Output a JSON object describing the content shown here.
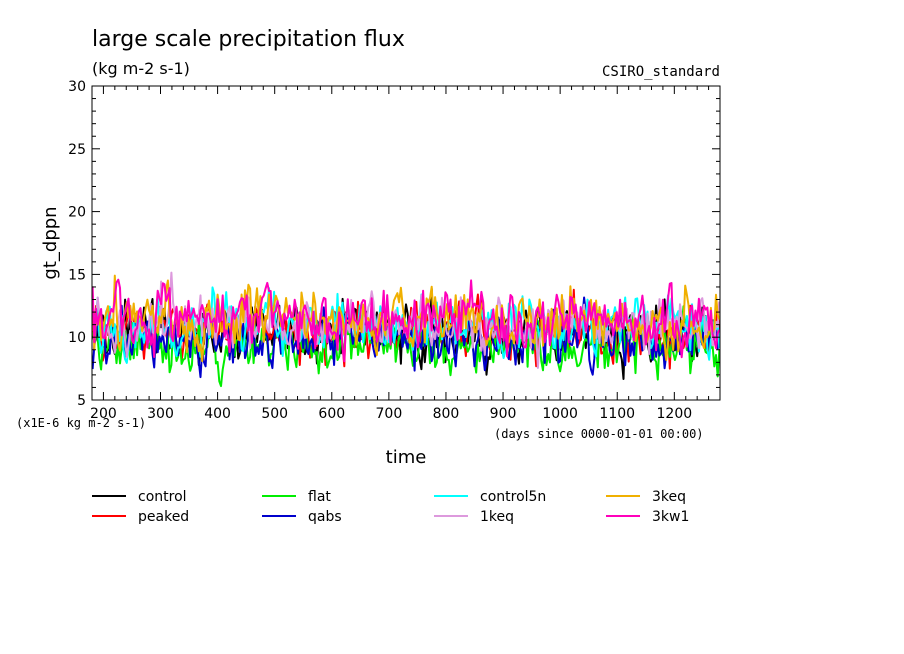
{
  "chart_data": {
    "type": "line",
    "title": "large scale precipitation flux",
    "subtitle": "(kg m-2 s-1)",
    "source_label": "CSIRO_standard",
    "xlabel": "time",
    "ylabel": "gt_dppn",
    "y_scale_note": "(x1E-6 kg m-2 s-1)",
    "x_axis_note": "(days since 0000-01-01 00:00)",
    "xlim": [
      180,
      1280
    ],
    "ylim": [
      5,
      30
    ],
    "x_ticks": [
      200,
      300,
      400,
      500,
      600,
      700,
      800,
      900,
      1000,
      1100,
      1200
    ],
    "y_ticks": [
      5,
      10,
      15,
      20,
      25,
      30
    ],
    "legend_position": "bottom",
    "x_start": 181,
    "x_step": 3,
    "series": [
      {
        "name": "control",
        "color": "#000000",
        "base": 10.4,
        "amp": 1.6,
        "seed": 11
      },
      {
        "name": "peaked",
        "color": "#ff0000",
        "base": 10.2,
        "amp": 1.5,
        "seed": 23
      },
      {
        "name": "flat",
        "color": "#00ee00",
        "base": 9.3,
        "amp": 1.6,
        "seed": 37
      },
      {
        "name": "qabs",
        "color": "#0000cc",
        "base": 9.9,
        "amp": 1.5,
        "seed": 41
      },
      {
        "name": "control5n",
        "color": "#00ffff",
        "base": 10.9,
        "amp": 1.6,
        "seed": 53
      },
      {
        "name": "1keq",
        "color": "#dd99dd",
        "base": 11.0,
        "amp": 1.6,
        "seed": 67
      },
      {
        "name": "3keq",
        "color": "#f0b000",
        "base": 11.3,
        "amp": 1.7,
        "seed": 79
      },
      {
        "name": "3kw1",
        "color": "#ff00bb",
        "base": 11.4,
        "amp": 1.7,
        "seed": 97
      }
    ]
  }
}
